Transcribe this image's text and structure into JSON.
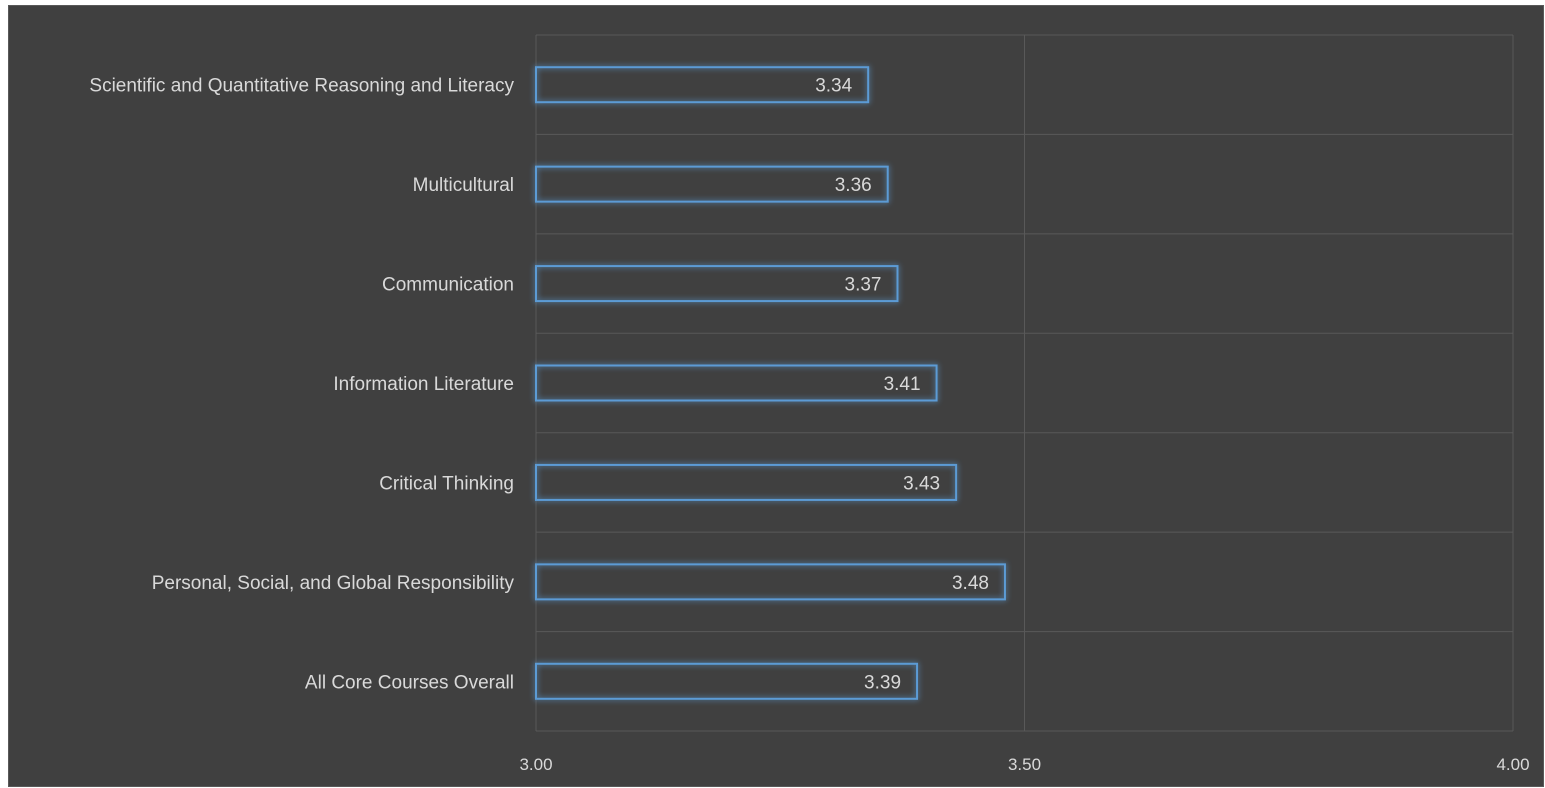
{
  "chart_data": {
    "type": "bar",
    "orientation": "horizontal",
    "categories": [
      "Scientific and Quantitative Reasoning and Literacy",
      "Multicultural",
      "Communication",
      "Information Literature",
      "Critical Thinking",
      "Personal, Social, and Global Responsibility",
      "All Core Courses Overall"
    ],
    "values": [
      3.34,
      3.36,
      3.37,
      3.41,
      3.43,
      3.48,
      3.39
    ],
    "data_labels": [
      "3.34",
      "3.36",
      "3.37",
      "3.41",
      "3.43",
      "3.48",
      "3.39"
    ],
    "xlim": [
      3.0,
      4.0
    ],
    "xticks": [
      "3.00",
      "3.50",
      "4.00"
    ],
    "grid": true,
    "bar_color": "#5b9bd5",
    "background": "#404040",
    "text_color": "#d9d9d9",
    "gridline_color": "#595959"
  }
}
